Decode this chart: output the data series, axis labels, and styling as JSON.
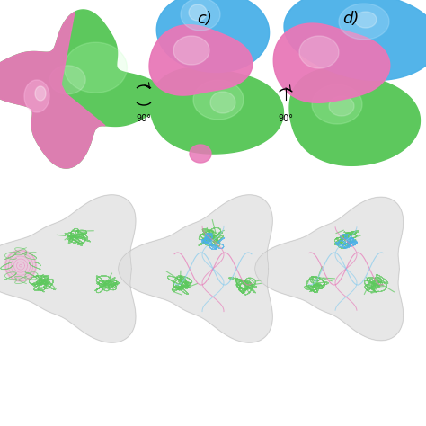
{
  "background_color": "#ffffff",
  "label_c": "c)",
  "label_d": "d)",
  "green": "#5dc85d",
  "green_highlight": "#a8f0a8",
  "green_dark": "#3a9c3a",
  "pink": "#e878b8",
  "pink_light": "#f0a8d8",
  "blue": "#4ab0e8",
  "blue_light": "#90d0f8",
  "blue_dark": "#2888c8",
  "white_surf": "#e0e0e0",
  "figsize": [
    4.74,
    4.74
  ],
  "dpi": 100
}
